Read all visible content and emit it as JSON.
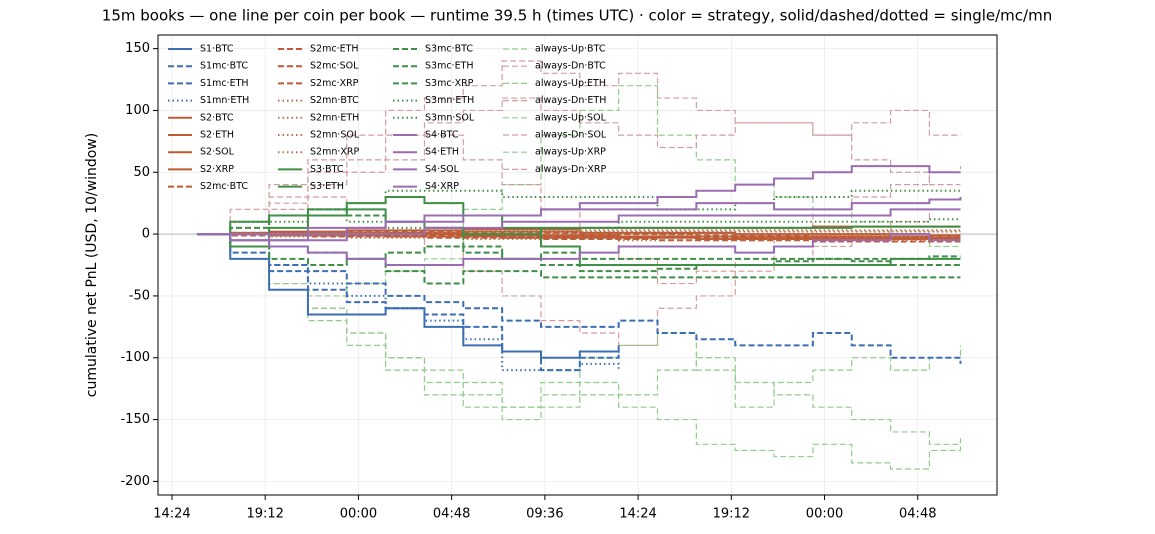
{
  "chart_data": {
    "type": "line",
    "drawstyle": "steps",
    "title": "15m books — one line per coin per book — runtime 39.5 h (times UTC) · color = strategy, solid/dashed/dotted = single/mc/mn",
    "y_label": "cumulative net PnL (USD, 10/window)",
    "x": [
      1.3,
      3,
      5,
      7,
      9,
      11,
      13,
      15,
      17,
      19,
      21,
      23,
      25,
      27,
      29,
      31,
      33,
      35,
      37,
      39,
      40.6
    ],
    "xlim": [
      -0.72,
      42.48
    ],
    "xticks": [
      {
        "value": 0,
        "label": "14:24"
      },
      {
        "value": 4.8,
        "label": "19:12"
      },
      {
        "value": 9.6,
        "label": "00:00"
      },
      {
        "value": 14.4,
        "label": "04:48"
      },
      {
        "value": 19.2,
        "label": "09:36"
      },
      {
        "value": 24,
        "label": "14:24"
      },
      {
        "value": 28.8,
        "label": "19:12"
      },
      {
        "value": 33.6,
        "label": "00:00"
      },
      {
        "value": 38.4,
        "label": "04:48"
      }
    ],
    "ylim": [
      -211,
      161
    ],
    "yticks": [
      -200,
      -150,
      -100,
      -50,
      0,
      50,
      100,
      150
    ],
    "grid": true,
    "axhline": 0,
    "legend": "upper left",
    "legend_columns": 4,
    "series": [
      {
        "name": "S1·BTC",
        "color": "#3c6eb4",
        "linestyle": "solid",
        "values": [
          0,
          -20,
          -45,
          -65,
          -65,
          -60,
          -75,
          -90,
          -95,
          -100,
          -95,
          -90,
          null,
          null,
          null,
          null,
          null,
          null,
          null,
          null,
          null
        ]
      },
      {
        "name": "S1mc·BTC",
        "color": "#3c6eb4",
        "linestyle": "dashed",
        "values": [
          0,
          -10,
          -25,
          -30,
          -40,
          -50,
          -55,
          -60,
          -70,
          -75,
          -75,
          -70,
          -80,
          -85,
          -90,
          -90,
          -80,
          -90,
          -100,
          -100,
          -105
        ]
      },
      {
        "name": "S1mc·ETH",
        "color": "#3c6eb4",
        "linestyle": "dashed",
        "values": [
          0,
          -15,
          -30,
          -45,
          -55,
          -60,
          -65,
          -75,
          -95,
          -110,
          -100,
          -95,
          null,
          null,
          null,
          null,
          null,
          null,
          null,
          null,
          null
        ]
      },
      {
        "name": "S1mn·ETH",
        "color": "#3c6eb4",
        "linestyle": "dotted",
        "values": [
          0,
          -10,
          -25,
          -40,
          -50,
          -60,
          -70,
          -85,
          -110,
          -110,
          -105,
          -110,
          null,
          null,
          null,
          null,
          null,
          null,
          null,
          null,
          null
        ]
      },
      {
        "name": "S2·BTC",
        "color": "#c05a34",
        "linestyle": "solid",
        "values": [
          0,
          1,
          2,
          2,
          3,
          3,
          3,
          4,
          4,
          4,
          5,
          5,
          5,
          5,
          5,
          5,
          6,
          6,
          6,
          6,
          6
        ]
      },
      {
        "name": "S2·ETH",
        "color": "#c05a34",
        "linestyle": "solid",
        "values": [
          0,
          0,
          1,
          1,
          1,
          0,
          0,
          -1,
          -1,
          -1,
          -1,
          -2,
          -2,
          -2,
          -2,
          -2,
          -2,
          -2,
          -2,
          -3,
          -3
        ]
      },
      {
        "name": "S2·SOL",
        "color": "#c05a34",
        "linestyle": "solid",
        "values": [
          0,
          0,
          -1,
          -1,
          -1,
          -2,
          -2,
          -2,
          -3,
          -3,
          -3,
          -3,
          -3,
          -4,
          -4,
          -4,
          -4,
          -4,
          -4,
          -4,
          -4
        ]
      },
      {
        "name": "S2·XRP",
        "color": "#c05a34",
        "linestyle": "solid",
        "values": [
          0,
          0,
          0,
          1,
          1,
          1,
          1,
          2,
          2,
          2,
          1,
          1,
          1,
          1,
          0,
          0,
          0,
          0,
          0,
          -1,
          -1
        ]
      },
      {
        "name": "S2mc·BTC",
        "color": "#c05a34",
        "linestyle": "dashed",
        "values": [
          0,
          -1,
          -1,
          -2,
          -2,
          -2,
          -3,
          -3,
          -3,
          -4,
          -4,
          -4,
          -5,
          -5,
          -5,
          -5,
          -6,
          -6,
          -6,
          -6,
          -6
        ]
      },
      {
        "name": "S2mc·ETH",
        "color": "#c05a34",
        "linestyle": "dashed",
        "values": [
          0,
          1,
          1,
          1,
          0,
          0,
          0,
          -1,
          -1,
          -2,
          -2,
          -2,
          -2,
          -3,
          -3,
          -3,
          -3,
          -3,
          -3,
          -4,
          -4
        ]
      },
      {
        "name": "S2mc·SOL",
        "color": "#c05a34",
        "linestyle": "dashed",
        "values": [
          0,
          0,
          1,
          1,
          2,
          2,
          2,
          1,
          1,
          1,
          0,
          0,
          0,
          -1,
          -1,
          -1,
          -2,
          -2,
          -2,
          -2,
          -2
        ]
      },
      {
        "name": "S2mc·XRP",
        "color": "#c05a34",
        "linestyle": "dashed",
        "values": [
          0,
          -1,
          -1,
          -1,
          -1,
          -1,
          -1,
          -1,
          -2,
          -2,
          -2,
          -2,
          -2,
          -2,
          -3,
          -3,
          -3,
          -3,
          -3,
          -3,
          -3
        ]
      },
      {
        "name": "S2mn·BTC",
        "color": "#b8704a",
        "linestyle": "dotted",
        "values": [
          0,
          1,
          1,
          2,
          2,
          2,
          2,
          3,
          3,
          3,
          3,
          3,
          3,
          3,
          3,
          3,
          3,
          3,
          3,
          3,
          3
        ]
      },
      {
        "name": "S2mn·ETH",
        "color": "#b8704a",
        "linestyle": "dotted",
        "values": [
          0,
          0,
          -1,
          -1,
          0,
          0,
          1,
          1,
          1,
          0,
          0,
          0,
          -1,
          -1,
          -1,
          -1,
          -1,
          -1,
          -2,
          -2,
          -2
        ]
      },
      {
        "name": "S2mn·SOL",
        "color": "#b8704a",
        "linestyle": "dotted",
        "values": [
          0,
          -1,
          -2,
          -2,
          -3,
          -3,
          -3,
          -4,
          -4,
          -4,
          -4,
          -5,
          -5,
          -5,
          -5,
          -5,
          -5,
          -5,
          -5,
          -5,
          -5
        ]
      },
      {
        "name": "S2mn·XRP",
        "color": "#b8704a",
        "linestyle": "dotted",
        "values": [
          0,
          0,
          1,
          1,
          1,
          2,
          2,
          2,
          2,
          2,
          2,
          2,
          2,
          2,
          2,
          2,
          2,
          2,
          2,
          2,
          2
        ]
      },
      {
        "name": "S3·BTC",
        "color": "#3f8f46",
        "linestyle": "solid",
        "values": [
          0,
          10,
          15,
          20,
          25,
          30,
          25,
          15,
          5,
          -10,
          -25,
          -25,
          -25,
          -25,
          -25,
          -25,
          -25,
          -25,
          -20,
          -20,
          -20
        ]
      },
      {
        "name": "S3·ETH",
        "color": "#3f8f46",
        "linestyle": "solid",
        "values": [
          0,
          -10,
          5,
          15,
          20,
          10,
          5,
          0,
          0,
          5,
          5,
          5,
          5,
          5,
          5,
          5,
          5,
          6,
          6,
          6,
          6
        ]
      },
      {
        "name": "S3mc·BTC",
        "color": "#3f8f46",
        "linestyle": "dashed",
        "values": [
          0,
          -5,
          -10,
          -15,
          -20,
          -30,
          -40,
          -30,
          -30,
          -35,
          -35,
          -35,
          -35,
          -35,
          -35,
          -35,
          -35,
          -35,
          -35,
          -35,
          -35
        ]
      },
      {
        "name": "S3mc·ETH",
        "color": "#3f8f46",
        "linestyle": "dashed",
        "values": [
          0,
          5,
          15,
          20,
          15,
          10,
          5,
          -10,
          -20,
          -25,
          -30,
          -30,
          -28,
          -25,
          -25,
          -22,
          -20,
          -20,
          -20,
          -18,
          -18
        ]
      },
      {
        "name": "S3mc·XRP",
        "color": "#3f8f46",
        "linestyle": "dashed",
        "values": [
          0,
          -10,
          -20,
          -25,
          -20,
          -15,
          -10,
          -15,
          -20,
          -15,
          -20,
          -20,
          -20,
          -20,
          -20,
          -20,
          -20,
          -22,
          -25,
          -25,
          -25
        ]
      },
      {
        "name": "S3mn·ETH",
        "color": "#3f8f46",
        "linestyle": "dotted",
        "values": [
          0,
          5,
          10,
          15,
          25,
          35,
          35,
          35,
          30,
          30,
          30,
          30,
          20,
          20,
          25,
          30,
          30,
          35,
          35,
          35,
          35
        ]
      },
      {
        "name": "S3mn·SOL",
        "color": "#3f8f46",
        "linestyle": "dotted",
        "values": [
          0,
          10,
          15,
          20,
          10,
          5,
          5,
          0,
          0,
          5,
          5,
          10,
          10,
          10,
          10,
          10,
          10,
          10,
          10,
          12,
          12
        ]
      },
      {
        "name": "S4·BTC",
        "color": "#9a6db3",
        "linestyle": "solid",
        "values": [
          0,
          0,
          0,
          5,
          5,
          10,
          10,
          15,
          15,
          20,
          25,
          25,
          30,
          35,
          40,
          45,
          50,
          55,
          55,
          50,
          50
        ]
      },
      {
        "name": "S4·ETH",
        "color": "#9a6db3",
        "linestyle": "solid",
        "values": [
          0,
          -5,
          -5,
          0,
          5,
          10,
          15,
          15,
          15,
          20,
          20,
          20,
          20,
          25,
          25,
          20,
          20,
          25,
          25,
          28,
          30
        ]
      },
      {
        "name": "S4·SOL",
        "color": "#9a6db3",
        "linestyle": "solid",
        "values": [
          0,
          0,
          -5,
          -5,
          0,
          0,
          5,
          5,
          10,
          10,
          10,
          15,
          15,
          15,
          15,
          15,
          15,
          15,
          20,
          20,
          20
        ]
      },
      {
        "name": "S4·XRP",
        "color": "#9a6db3",
        "linestyle": "solid",
        "values": [
          0,
          -5,
          -10,
          -15,
          -20,
          -25,
          -25,
          -20,
          -20,
          -20,
          -15,
          -10,
          -10,
          -10,
          -15,
          -10,
          -5,
          -5,
          0,
          -5,
          -5
        ]
      },
      {
        "name": "always-Up·BTC",
        "color": "#91cc8a",
        "linestyle": "dashed",
        "values": [
          0,
          -20,
          -40,
          -60,
          -80,
          -100,
          -110,
          -120,
          -140,
          -130,
          -120,
          -130,
          -110,
          -100,
          -120,
          -130,
          -140,
          -150,
          -160,
          -170,
          -165
        ]
      },
      {
        "name": "always-Dn·BTC",
        "color": "#d39c9e",
        "linestyle": "dashed",
        "values": [
          0,
          20,
          40,
          60,
          80,
          100,
          110,
          120,
          140,
          130,
          120,
          130,
          110,
          100,
          90,
          90,
          80,
          60,
          50,
          40,
          40
        ]
      },
      {
        "name": "always-Up·ETH",
        "color": "#91cc8a",
        "linestyle": "dashed",
        "values": [
          0,
          -10,
          -30,
          -50,
          -40,
          -30,
          -20,
          20,
          40,
          80,
          100,
          120,
          80,
          60,
          40,
          30,
          20,
          10,
          0,
          -10,
          -10
        ]
      },
      {
        "name": "always-Dn·ETH",
        "color": "#d39c9e",
        "linestyle": "dashed",
        "values": [
          0,
          10,
          20,
          30,
          20,
          10,
          -10,
          -30,
          -50,
          -70,
          -80,
          -90,
          -60,
          -50,
          -30,
          -20,
          -10,
          0,
          10,
          20,
          20
        ]
      },
      {
        "name": "always-Up·SOL",
        "color": "#91cc8a",
        "linestyle": "dashed",
        "values": [
          0,
          -15,
          -40,
          -70,
          -90,
          -110,
          -130,
          -140,
          -150,
          -140,
          -130,
          -140,
          -150,
          -170,
          -175,
          -180,
          -170,
          -185,
          -190,
          -175,
          -170
        ]
      },
      {
        "name": "always-Dn·SOL",
        "color": "#d39c9e",
        "linestyle": "dashed",
        "values": [
          0,
          10,
          30,
          50,
          60,
          80,
          90,
          100,
          110,
          100,
          90,
          80,
          70,
          80,
          90,
          90,
          80,
          90,
          100,
          80,
          80
        ]
      },
      {
        "name": "always-Up·XRP",
        "color": "#91cc8a",
        "linestyle": "dashed",
        "values": [
          0,
          -20,
          -40,
          -60,
          -80,
          -100,
          -120,
          -130,
          -140,
          -120,
          -100,
          -90,
          -80,
          -110,
          -140,
          -120,
          -110,
          -100,
          -110,
          -100,
          -90
        ]
      },
      {
        "name": "always-Dn·XRP",
        "color": "#d39c9e",
        "linestyle": "dashed",
        "values": [
          0,
          10,
          25,
          40,
          50,
          60,
          80,
          60,
          40,
          20,
          0,
          -20,
          -40,
          -30,
          -20,
          0,
          20,
          30,
          40,
          50,
          55
        ]
      }
    ]
  }
}
